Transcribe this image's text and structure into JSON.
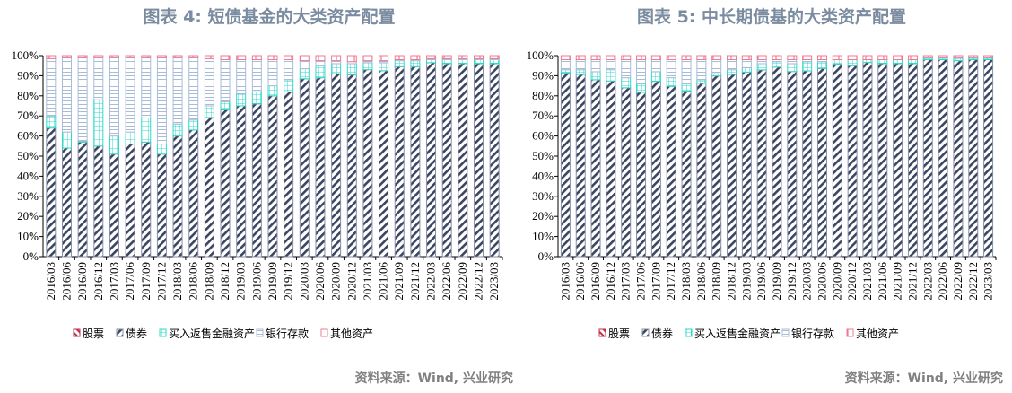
{
  "colors": {
    "stocks": "#c0304a",
    "bonds": "#3c4660",
    "repo": "#30d8c8",
    "deposits": "#a8bcd8",
    "other": "#f07890",
    "title": "#7b8ca1"
  },
  "chart_data": [
    {
      "type": "bar",
      "stacked": true,
      "title": "图表 4:    短债基金的大类资产配置",
      "source": "资料来源：Wind, 兴业研究",
      "ylim": [
        0,
        100
      ],
      "yticks": [
        "0%",
        "10%",
        "20%",
        "30%",
        "40%",
        "50%",
        "60%",
        "70%",
        "80%",
        "90%",
        "100%"
      ],
      "legend_position": "bottom",
      "categories": [
        "2016/03",
        "2016/06",
        "2016/09",
        "2016/12",
        "2017/03",
        "2017/06",
        "2017/09",
        "2017/12",
        "2018/03",
        "2018/06",
        "2018/09",
        "2018/12",
        "2019/03",
        "2019/06",
        "2019/09",
        "2019/12",
        "2020/03",
        "2020/06",
        "2020/09",
        "2020/12",
        "2021/03",
        "2021/06",
        "2021/09",
        "2021/12",
        "2022/03",
        "2022/06",
        "2022/09",
        "2022/12",
        "2023/03"
      ],
      "series": [
        {
          "name": "股票",
          "key": "stocks",
          "values": [
            0,
            0,
            0,
            0,
            0,
            0,
            0,
            0,
            0,
            0,
            0,
            0,
            0,
            0,
            0,
            0,
            0,
            0,
            0,
            0,
            0,
            0,
            0,
            0,
            0,
            0,
            0,
            0,
            0
          ]
        },
        {
          "name": "债券",
          "key": "bonds",
          "values": [
            64,
            54,
            57,
            55,
            51,
            56,
            57,
            51,
            60,
            63,
            69,
            73,
            75,
            76,
            80,
            82,
            88.5,
            89,
            91,
            90.5,
            93,
            92.5,
            94.5,
            94.5,
            96.5,
            96,
            96,
            96,
            96
          ]
        },
        {
          "name": "买入返售金融资产",
          "key": "repo",
          "values": [
            6,
            8,
            0.5,
            23,
            9,
            6,
            12,
            5,
            6,
            5,
            6,
            4,
            6,
            6,
            5,
            6,
            5,
            6,
            5,
            5.5,
            3.5,
            4,
            3,
            3,
            1.5,
            2,
            2,
            2,
            2
          ]
        },
        {
          "name": "银行存款",
          "key": "deposits",
          "values": [
            28.5,
            37,
            41.5,
            21,
            39,
            37,
            30,
            43,
            33,
            31,
            23.5,
            21,
            17,
            16,
            13,
            10,
            4,
            2.5,
            1.5,
            1,
            1,
            1,
            0.5,
            0.5,
            0.5,
            0.5,
            0.5,
            0.5,
            0.5
          ]
        },
        {
          "name": "其他资产",
          "key": "other",
          "values": [
            1.5,
            1,
            1,
            1,
            1,
            1,
            1,
            1,
            1,
            1,
            1.5,
            2,
            2,
            2,
            2,
            2,
            2.5,
            2.5,
            2.5,
            3,
            2.5,
            2.5,
            2,
            2,
            1.5,
            1.5,
            1.5,
            1.5,
            1.5
          ]
        }
      ]
    },
    {
      "type": "bar",
      "stacked": true,
      "title": "图表 5:   中长期债基的大类资产配置",
      "source": "资料来源：Wind, 兴业研究",
      "ylim": [
        0,
        100
      ],
      "yticks": [
        "0%",
        "10%",
        "20%",
        "30%",
        "40%",
        "50%",
        "60%",
        "70%",
        "80%",
        "90%",
        "100%"
      ],
      "legend_position": "bottom",
      "categories": [
        "2016/03",
        "2016/06",
        "2016/09",
        "2016/12",
        "2017/03",
        "2017/06",
        "2017/09",
        "2017/12",
        "2018/03",
        "2018/06",
        "2018/09",
        "2018/12",
        "2019/03",
        "2019/06",
        "2019/09",
        "2019/12",
        "2020/03",
        "2020/06",
        "2020/09",
        "2020/12",
        "2021/03",
        "2021/06",
        "2021/09",
        "2021/12",
        "2022/03",
        "2022/06",
        "2022/09",
        "2022/12",
        "2023/03"
      ],
      "series": [
        {
          "name": "股票",
          "key": "stocks",
          "values": [
            0,
            0,
            0,
            0,
            0,
            0,
            0,
            0,
            0,
            0,
            0,
            0,
            0,
            0,
            0,
            0,
            0,
            0,
            0,
            0,
            0,
            0,
            0,
            0,
            0,
            0,
            0,
            0,
            0
          ]
        },
        {
          "name": "债券",
          "key": "bonds",
          "values": [
            91.4,
            90.6,
            88,
            87.4,
            84,
            81.7,
            87.2,
            84.7,
            82.4,
            86.2,
            89.9,
            90.6,
            91.8,
            92.9,
            94.3,
            92.1,
            92.4,
            93.6,
            95.8,
            95,
            96.6,
            96,
            96,
            96,
            98,
            98,
            97.5,
            98,
            98
          ]
        },
        {
          "name": "买入返售金融资产",
          "key": "repo",
          "values": [
            1.6,
            2.4,
            4,
            5.6,
            5,
            4.3,
            4.8,
            4.3,
            3.6,
            1.8,
            1.1,
            2.4,
            2.2,
            3.1,
            2.7,
            3.9,
            4.6,
            3.4,
            2.2,
            3,
            1.4,
            2,
            2,
            2,
            1,
            1,
            1.5,
            1,
            1
          ]
        },
        {
          "name": "银行存款",
          "key": "deposits",
          "values": [
            5,
            5,
            6,
            5,
            9,
            12,
            6,
            9,
            12,
            10,
            7,
            5,
            4,
            2,
            1,
            2,
            1,
            1,
            0,
            0,
            0,
            0,
            0,
            0,
            0,
            0,
            0,
            0,
            0
          ]
        },
        {
          "name": "其他资产",
          "key": "other",
          "values": [
            2,
            2,
            2,
            2,
            2,
            2,
            2,
            2,
            2,
            2,
            2,
            2,
            2,
            2,
            2,
            2,
            2,
            2,
            2,
            2,
            2,
            2,
            2,
            2,
            1,
            1,
            1,
            1,
            1
          ]
        }
      ]
    }
  ]
}
